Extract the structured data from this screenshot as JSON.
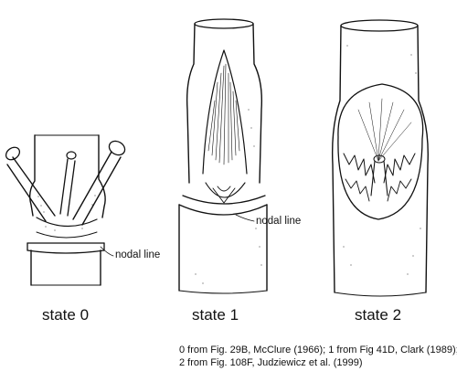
{
  "panels": [
    {
      "id": "state-0",
      "label": "state 0",
      "callout": "nodal line"
    },
    {
      "id": "state-1",
      "label": "state 1",
      "callout": "nodal line"
    },
    {
      "id": "state-2",
      "label": "state 2"
    }
  ],
  "caption": {
    "line1": "0 from Fig. 29B, McClure (1966); 1 from Fig 41D, Clark (1989);",
    "line2": "2 from Fig. 108F, Judziewicz et al. (1999)"
  },
  "colors": {
    "ink": "#111111",
    "paper": "#ffffff"
  }
}
